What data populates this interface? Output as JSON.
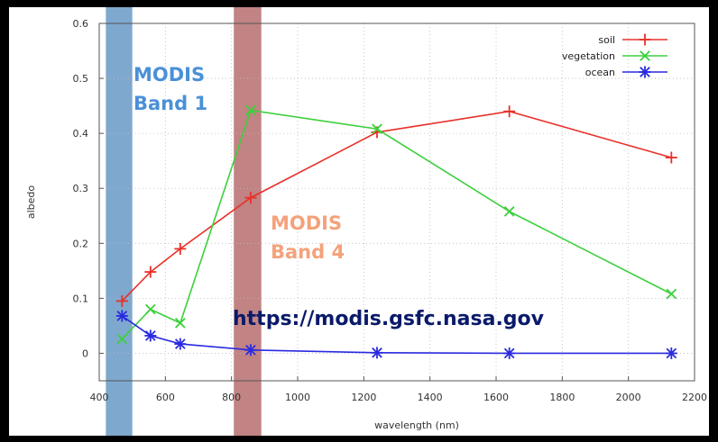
{
  "chart_data": {
    "type": "line",
    "xlabel": "wavelength (nm)",
    "ylabel": "albedo",
    "xlim": [
      400,
      2200
    ],
    "ylim": [
      -0.05,
      0.6
    ],
    "xticks": [
      400,
      600,
      800,
      1000,
      1200,
      1400,
      1600,
      1800,
      2000,
      2200
    ],
    "yticks": [
      0,
      0.1,
      0.2,
      0.3,
      0.4,
      0.5,
      0.6
    ],
    "ytick_labels": [
      "0",
      "0.1",
      "0.2",
      "0.3",
      "0.4",
      "0.5",
      "0.6"
    ],
    "grid": true,
    "legend_position": "top-right",
    "series": [
      {
        "name": "soil",
        "color": "#e8302a",
        "marker": "plus",
        "x": [
          469,
          555,
          645,
          858,
          1240,
          1640,
          2130
        ],
        "y": [
          0.095,
          0.148,
          0.19,
          0.283,
          0.402,
          0.44,
          0.356
        ]
      },
      {
        "name": "vegetation",
        "color": "#3cd03c",
        "marker": "x",
        "x": [
          469,
          555,
          645,
          858,
          1240,
          1640,
          2130
        ],
        "y": [
          0.026,
          0.08,
          0.055,
          0.442,
          0.408,
          0.258,
          0.108
        ]
      },
      {
        "name": "ocean",
        "color": "#2a2ae0",
        "marker": "asterisk",
        "x": [
          469,
          555,
          645,
          858,
          1240,
          1640,
          2130
        ],
        "y": [
          0.068,
          0.032,
          0.017,
          0.006,
          0.001,
          0.0,
          0.0
        ]
      }
    ],
    "bands": [
      {
        "x0": 420,
        "x1": 500,
        "color": "#5b90c0",
        "label_lines": [
          "MODIS",
          "Band 1"
        ],
        "label_color": "#4a90d8"
      },
      {
        "x0": 807,
        "x1": 890,
        "color": "#b06060",
        "label_lines": [
          "MODIS",
          "Band 4"
        ],
        "label_color": "#f4a27c"
      }
    ],
    "annotation": {
      "text": "https://modis.gsfc.nasa.gov",
      "color": "#0a1a6a"
    }
  }
}
